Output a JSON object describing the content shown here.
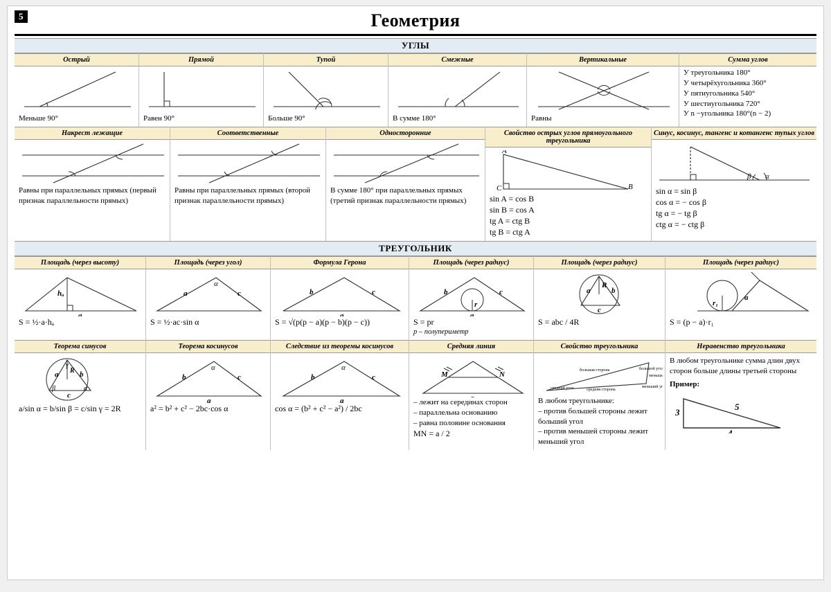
{
  "meta": {
    "page_number": "5",
    "title": "Геометрия"
  },
  "sections": {
    "s1": "УГЛЫ",
    "s2": "ТРЕУГОЛЬНИК"
  },
  "angles_row1": {
    "widths": [
      180,
      180,
      180,
      200,
      220,
      198
    ],
    "cells": [
      {
        "hdr": "Острый",
        "caption": "Меньше 90°"
      },
      {
        "hdr": "Прямой",
        "caption": "Равен 90°"
      },
      {
        "hdr": "Тупой",
        "caption": "Больше 90°"
      },
      {
        "hdr": "Смежные",
        "caption": "В сумме 180°"
      },
      {
        "hdr": "Вертикальные",
        "caption": "Равны"
      },
      {
        "hdr": "Сумма углов",
        "lines": [
          "У треугольника 180°",
          "У четырёхугольника 360°",
          "У пятиугольника 540°",
          "У шестиугольника 720°",
          "У n −угольника 180°(n − 2)"
        ]
      }
    ]
  },
  "angles_row2": {
    "widths": [
      225,
      225,
      230,
      240,
      238
    ],
    "cells": [
      {
        "hdr": "Накрест лежащие",
        "caption": "Равны при параллельных прямых (первый признак параллельности прямых)"
      },
      {
        "hdr": "Соответственные",
        "caption": "Равны при параллельных прямых (второй признак параллельности прямых)"
      },
      {
        "hdr": "Односторонние",
        "caption": "В сумме 180° при параллельных прямых (третий признак параллельности прямых)"
      },
      {
        "hdr": "Свойство острых углов прямоугольного треугольника",
        "labels": {
          "A": "A",
          "B": "B",
          "C": "C"
        },
        "formulas": [
          "sin A = cos B",
          "sin B = cos A",
          "tg A = ctg B",
          "tg B = ctg A"
        ]
      },
      {
        "hdr": "Синус, косинус, тангенс и котангенс тупых углов",
        "labels": {
          "alpha": "α",
          "beta": "β"
        },
        "formulas": [
          "sin α = sin β",
          "cos α = − cos β",
          "tg α = − tg β",
          "ctg α = − ctg β"
        ]
      }
    ]
  },
  "tri_row1": {
    "widths": [
      190,
      180,
      200,
      180,
      190,
      218
    ],
    "cells": [
      {
        "hdr": "Площадь (через высоту)",
        "labels": [
          "hₐ",
          "a"
        ],
        "formula": "S = ½·a·hₐ"
      },
      {
        "hdr": "Площадь (через угол)",
        "labels": [
          "α",
          "a",
          "c"
        ],
        "formula": "S = ½·ac·sin α"
      },
      {
        "hdr": "Формула Герона",
        "labels": [
          "b",
          "c",
          "a"
        ],
        "formula": "S = √(p(p − a)(p − b)(p − c))"
      },
      {
        "hdr": "Площадь (через радиус)",
        "labels": [
          "b",
          "c",
          "r",
          "a"
        ],
        "formula": "S = pr",
        "sub": "p – полупериметр"
      },
      {
        "hdr": "Площадь (через радиус)",
        "labels": [
          "R",
          "a",
          "b",
          "c"
        ],
        "formula": "S = abc / 4R"
      },
      {
        "hdr": "Площадь (через радиус)",
        "labels": [
          "r₁",
          "a"
        ],
        "formula": "S = (p − a)·r₁"
      }
    ]
  },
  "tri_row2": {
    "widths": [
      190,
      180,
      200,
      180,
      190,
      218
    ],
    "cells": [
      {
        "hdr": "Теорема синусов",
        "labels": [
          "R",
          "a",
          "b",
          "c",
          "α",
          "β",
          "γ"
        ],
        "formula": "a/sin α = b/sin β = c/sin γ = 2R"
      },
      {
        "hdr": "Теорема косинусов",
        "labels": [
          "α",
          "b",
          "c",
          "a"
        ],
        "formula": "a² = b² + c² − 2bc·cos α"
      },
      {
        "hdr": "Следствие из теоремы косинусов",
        "labels": [
          "α",
          "b",
          "c",
          "a"
        ],
        "formula": "cos α = (b² + c² − a²) / 2bc"
      },
      {
        "hdr": "Средняя линия",
        "labels": [
          "M",
          "N",
          "a"
        ],
        "lines": [
          "– лежит на серединах сторон",
          "– параллельна основанию",
          "– равна половине основания"
        ],
        "formula": "MN = a / 2"
      },
      {
        "hdr": "Свойство треугольника",
        "diag_labels": [
          "большая сторона",
          "большой угол",
          "средняя сторона",
          "средний угол",
          "меньшая сторона",
          "меньший угол"
        ],
        "lines": [
          "В любом треугольнике:",
          "– против большей стороны лежит больший угол",
          "– против меньшей стороны лежит меньший угол"
        ]
      },
      {
        "hdr": "Неравенство треугольника",
        "lines": [
          "В любом треугольнике сумма длин двух сторон больше длины третьей стороны"
        ],
        "example_label": "Пример:",
        "sides": [
          "3",
          "4",
          "5"
        ]
      }
    ]
  },
  "style": {
    "header_bg": "#f9eecb",
    "section_bg": "#e2ecf2",
    "stroke": "#2b2b2b",
    "stroke_width": 1.1
  }
}
